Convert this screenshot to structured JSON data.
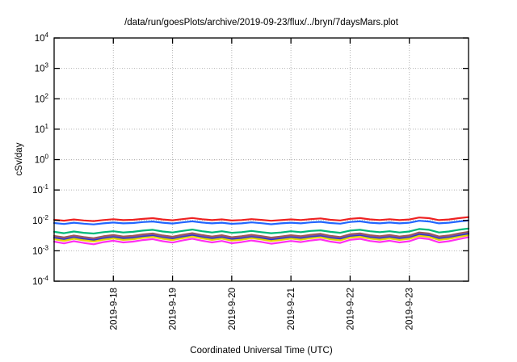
{
  "window": {
    "background_color": "#ffffff",
    "foreground_color": "#000000",
    "grid_color": "#b4b4b4",
    "border_color": "#000000"
  },
  "chart_data": {
    "type": "line",
    "title": "/data/run/goesPlots/archive/2019-09-23/flux/../bryn/7daysMars.plot",
    "xlabel": "Coordinated Universal Time (UTC)",
    "ylabel": "cSv/day",
    "y_scale": "log",
    "ylim": [
      0.0001,
      10000
    ],
    "y_tick_exponents": [
      4,
      3,
      2,
      1,
      0,
      -1,
      -2,
      -3,
      -4
    ],
    "y_tick_base": "10",
    "x_range": [
      "2019-9-17 00:00",
      "2019-9-24 00:00"
    ],
    "x_tick_labels": [
      "2019-9-18",
      "2019-9-19",
      "2019-9-20",
      "2019-9-21",
      "2019-9-22",
      "2019-9-23"
    ],
    "x_tick_day_offsets": [
      1,
      2,
      3,
      4,
      5,
      6
    ],
    "x_total_hours": 168,
    "grid": "dotted",
    "legend": "none",
    "x_hours": [
      0,
      4,
      8,
      12,
      16,
      20,
      24,
      28,
      32,
      36,
      40,
      44,
      48,
      52,
      56,
      60,
      64,
      68,
      72,
      76,
      80,
      84,
      88,
      92,
      96,
      100,
      104,
      108,
      112,
      116,
      120,
      124,
      128,
      132,
      136,
      140,
      144,
      148,
      152,
      156,
      160,
      164,
      168
    ],
    "series": [
      {
        "name": "red-line",
        "color": "#ee2222",
        "values": [
          0.0105,
          0.0098,
          0.0107,
          0.01,
          0.0095,
          0.0103,
          0.0109,
          0.0102,
          0.0105,
          0.0112,
          0.0118,
          0.0107,
          0.0101,
          0.011,
          0.012,
          0.0109,
          0.0102,
          0.0108,
          0.0099,
          0.0103,
          0.011,
          0.0104,
          0.0097,
          0.0102,
          0.0108,
          0.0103,
          0.011,
          0.0116,
          0.0105,
          0.01,
          0.0113,
          0.0119,
          0.0108,
          0.0103,
          0.0109,
          0.0102,
          0.0107,
          0.0124,
          0.0118,
          0.0102,
          0.0107,
          0.0118,
          0.0128
        ]
      },
      {
        "name": "blue-line",
        "color": "#2266ff",
        "values": [
          0.0082,
          0.0076,
          0.0084,
          0.0078,
          0.0074,
          0.008,
          0.0085,
          0.008,
          0.0082,
          0.0088,
          0.0092,
          0.0084,
          0.0079,
          0.0086,
          0.0093,
          0.0085,
          0.008,
          0.0084,
          0.0077,
          0.008,
          0.0086,
          0.0081,
          0.0075,
          0.008,
          0.0084,
          0.008,
          0.0086,
          0.009,
          0.0082,
          0.0078,
          0.0089,
          0.0093,
          0.0084,
          0.008,
          0.0085,
          0.008,
          0.0084,
          0.0097,
          0.0092,
          0.008,
          0.0084,
          0.0092,
          0.01
        ]
      },
      {
        "name": "green-line",
        "color": "#00b878",
        "values": [
          0.0042,
          0.0038,
          0.0043,
          0.0039,
          0.0037,
          0.0041,
          0.0044,
          0.004,
          0.0042,
          0.0046,
          0.0049,
          0.0043,
          0.004,
          0.0045,
          0.005,
          0.0044,
          0.004,
          0.0044,
          0.0039,
          0.0041,
          0.0045,
          0.0041,
          0.0038,
          0.004,
          0.0044,
          0.0041,
          0.0045,
          0.0047,
          0.0042,
          0.0039,
          0.0046,
          0.0049,
          0.0044,
          0.0041,
          0.0044,
          0.004,
          0.0043,
          0.0052,
          0.0049,
          0.004,
          0.0043,
          0.0049,
          0.0054
        ]
      },
      {
        "name": "brown-line",
        "color": "#a05a50",
        "values": [
          0.0031,
          0.00275,
          0.0032,
          0.00285,
          0.0026,
          0.003,
          0.0033,
          0.00295,
          0.0031,
          0.00345,
          0.0037,
          0.0032,
          0.0029,
          0.00335,
          0.0038,
          0.0033,
          0.00295,
          0.00325,
          0.0028,
          0.003,
          0.00335,
          0.00305,
          0.0027,
          0.00295,
          0.00325,
          0.003,
          0.00335,
          0.0036,
          0.0031,
          0.00285,
          0.0035,
          0.00375,
          0.00325,
          0.003,
          0.0033,
          0.00295,
          0.0032,
          0.004,
          0.0037,
          0.00295,
          0.0032,
          0.0037,
          0.0042
        ]
      },
      {
        "name": "purple-line",
        "color": "#7a4fa8",
        "values": [
          0.0028,
          0.00249,
          0.00289,
          0.00258,
          0.00235,
          0.00271,
          0.00298,
          0.00267,
          0.0028,
          0.00311,
          0.00334,
          0.00289,
          0.00262,
          0.00302,
          0.00343,
          0.00298,
          0.00267,
          0.00293,
          0.00253,
          0.00271,
          0.00302,
          0.00276,
          0.00244,
          0.00267,
          0.00293,
          0.00271,
          0.00302,
          0.00325,
          0.0028,
          0.00258,
          0.00316,
          0.00338,
          0.00293,
          0.00271,
          0.00298,
          0.00267,
          0.00289,
          0.00361,
          0.00334,
          0.00267,
          0.00289,
          0.00334,
          0.00379
        ]
      },
      {
        "name": "navy-line",
        "color": "#2838c8",
        "values": [
          0.0026,
          0.00231,
          0.00268,
          0.00239,
          0.00218,
          0.00252,
          0.00277,
          0.00248,
          0.0026,
          0.00289,
          0.0031,
          0.00268,
          0.00243,
          0.00281,
          0.00318,
          0.00277,
          0.00248,
          0.00272,
          0.00235,
          0.00252,
          0.00281,
          0.00256,
          0.00227,
          0.00248,
          0.00272,
          0.00252,
          0.00281,
          0.00302,
          0.0026,
          0.00239,
          0.00293,
          0.00314,
          0.00272,
          0.00252,
          0.00277,
          0.00248,
          0.00268,
          0.00335,
          0.0031,
          0.00248,
          0.00268,
          0.0031,
          0.00352
        ]
      },
      {
        "name": "yellow-line",
        "color": "#e6d400",
        "values": [
          0.0024,
          0.00213,
          0.00248,
          0.00221,
          0.00202,
          0.00232,
          0.00255,
          0.00228,
          0.0024,
          0.00267,
          0.00286,
          0.00248,
          0.00225,
          0.00259,
          0.00294,
          0.00255,
          0.00228,
          0.00252,
          0.00217,
          0.00232,
          0.00259,
          0.00236,
          0.00209,
          0.00228,
          0.00252,
          0.00232,
          0.00259,
          0.00278,
          0.0024,
          0.00221,
          0.00271,
          0.0029,
          0.00252,
          0.00232,
          0.00255,
          0.00228,
          0.00248,
          0.00309,
          0.00286,
          0.00228,
          0.00248,
          0.00286,
          0.00324
        ]
      },
      {
        "name": "magenta-line",
        "color": "#ff30f0",
        "values": [
          0.002,
          0.00175,
          0.00207,
          0.00182,
          0.00164,
          0.00193,
          0.00214,
          0.00189,
          0.002,
          0.00225,
          0.00243,
          0.00207,
          0.00186,
          0.00218,
          0.0025,
          0.00214,
          0.00189,
          0.00211,
          0.00178,
          0.00193,
          0.00218,
          0.00196,
          0.00171,
          0.00189,
          0.00211,
          0.00193,
          0.00218,
          0.00236,
          0.002,
          0.00182,
          0.00229,
          0.00247,
          0.00211,
          0.00193,
          0.00214,
          0.00189,
          0.00207,
          0.00265,
          0.00243,
          0.00189,
          0.00207,
          0.00243,
          0.00279
        ]
      }
    ]
  }
}
